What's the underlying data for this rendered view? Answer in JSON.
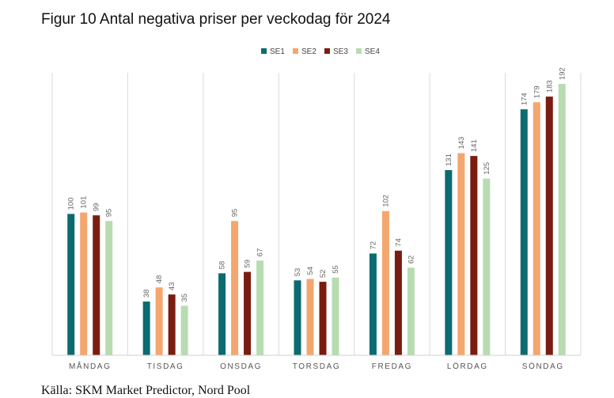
{
  "title": "Figur 10 Antal negativa priser per veckodag för 2024",
  "source": "Källa: SKM Market Predictor, Nord Pool",
  "chart_data": {
    "type": "bar",
    "title": "Figur 10 Antal negativa priser per veckodag för 2024",
    "categories": [
      "MÅNDAG",
      "TISDAG",
      "ONSDAG",
      "TORSDAG",
      "FREDAG",
      "LÖRDAG",
      "SÖNDAG"
    ],
    "series": [
      {
        "name": "SE1",
        "color": "#0b6b70",
        "values": [
          100,
          38,
          58,
          53,
          72,
          131,
          174
        ]
      },
      {
        "name": "SE2",
        "color": "#f4a66f",
        "values": [
          101,
          48,
          95,
          54,
          102,
          143,
          179
        ]
      },
      {
        "name": "SE3",
        "color": "#7a1c10",
        "values": [
          99,
          43,
          59,
          52,
          74,
          141,
          183
        ]
      },
      {
        "name": "SE4",
        "color": "#b8dcb1",
        "values": [
          95,
          35,
          67,
          55,
          62,
          125,
          192
        ]
      }
    ],
    "ylim": [
      0,
      192
    ],
    "legend_position": "top-center",
    "grid": "vertical category separators"
  }
}
